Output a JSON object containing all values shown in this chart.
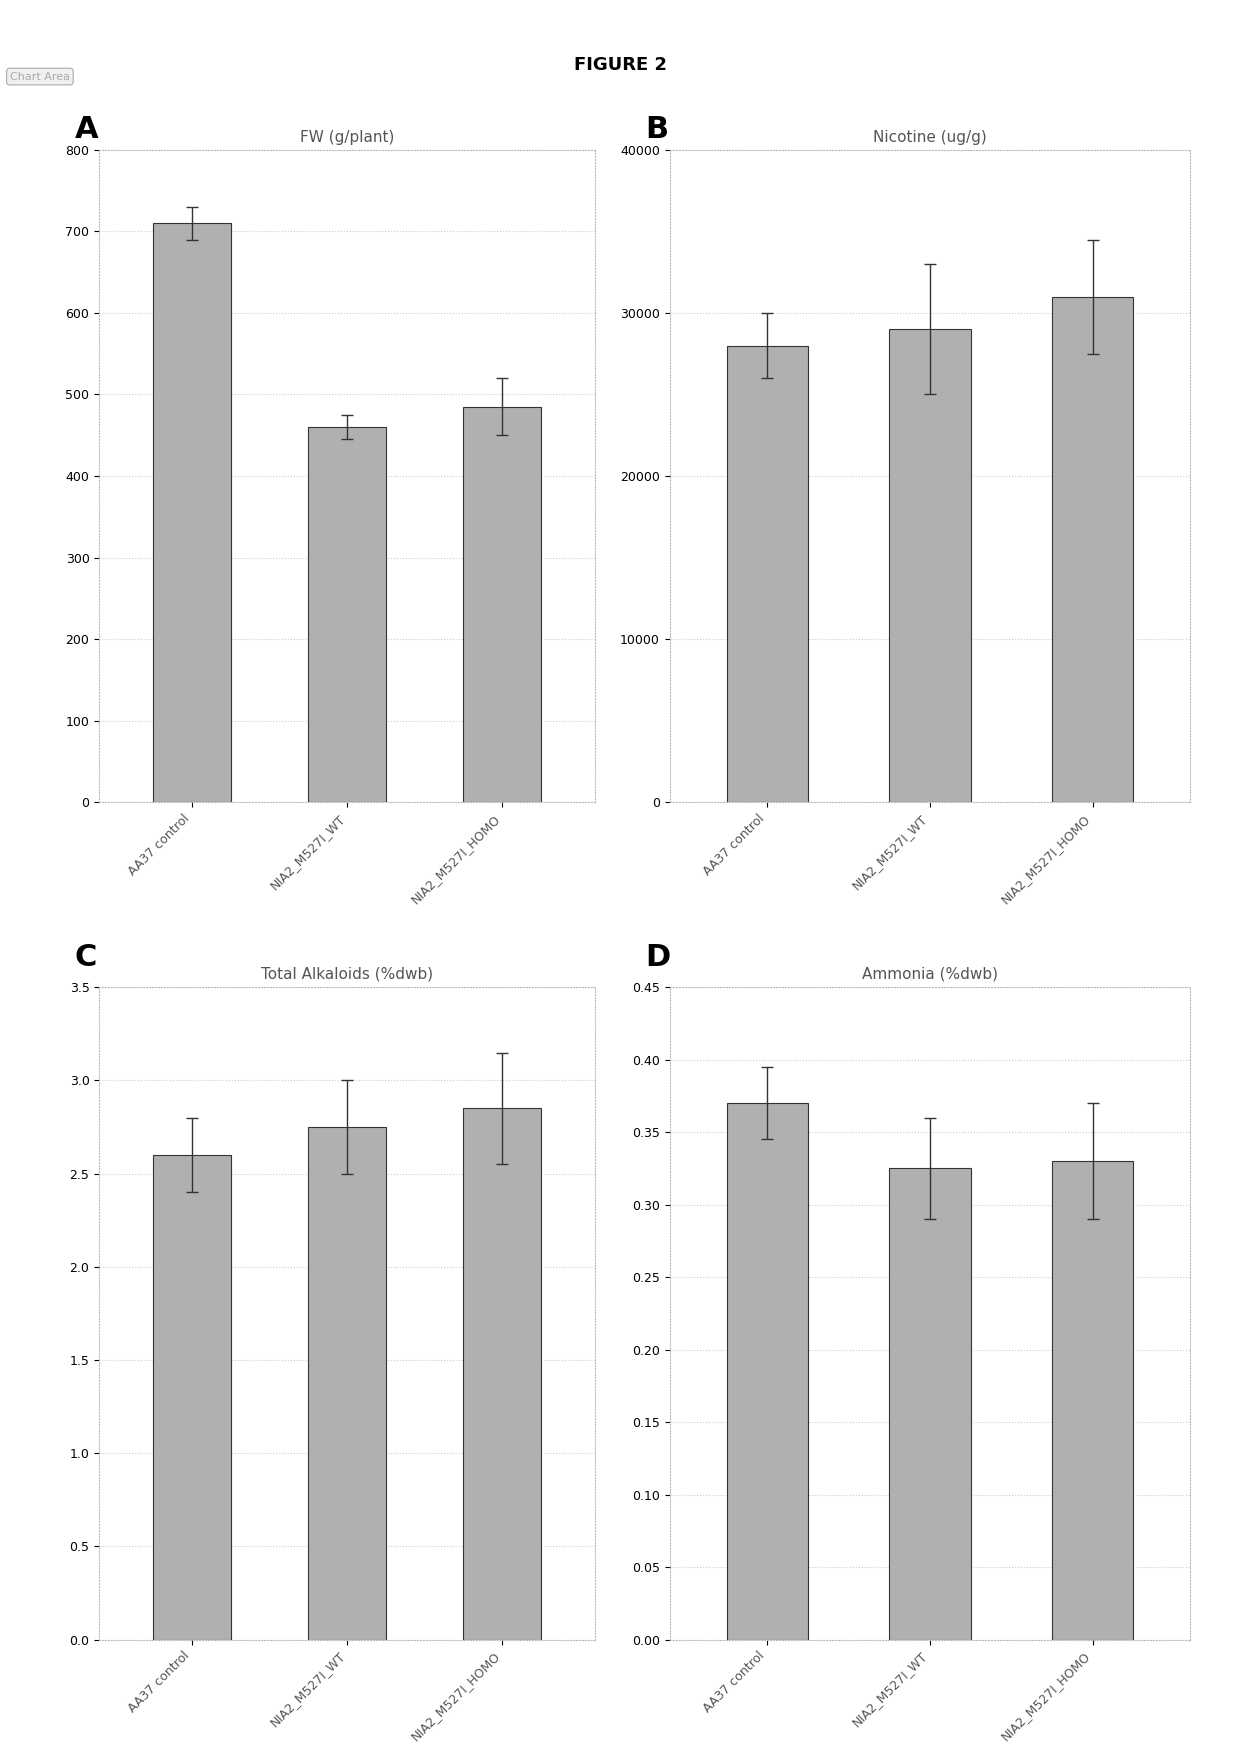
{
  "title": "FIGURE 2",
  "categories": [
    "AA37 control",
    "NIA2_M527I_WT",
    "NIA2_M527I_HOMO"
  ],
  "panels": [
    {
      "label": "A",
      "chart_title": "FW (g/plant)",
      "values": [
        710,
        460,
        485
      ],
      "errors": [
        20,
        15,
        35
      ],
      "ylim": [
        0,
        800
      ],
      "yticks": [
        0,
        100,
        200,
        300,
        400,
        500,
        600,
        700,
        800
      ],
      "has_chart_area_box": true
    },
    {
      "label": "B",
      "chart_title": "Nicotine (ug/g)",
      "values": [
        28000,
        29000,
        31000
      ],
      "errors": [
        2000,
        4000,
        3500
      ],
      "ylim": [
        0,
        40000
      ],
      "yticks": [
        0,
        10000,
        20000,
        30000,
        40000
      ],
      "has_chart_area_box": false
    },
    {
      "label": "C",
      "chart_title": "Total Alkaloids (%dwb)",
      "values": [
        2.6,
        2.75,
        2.85
      ],
      "errors": [
        0.2,
        0.25,
        0.3
      ],
      "ylim": [
        0,
        3.5
      ],
      "yticks": [
        0,
        0.5,
        1.0,
        1.5,
        2.0,
        2.5,
        3.0,
        3.5
      ],
      "has_chart_area_box": false
    },
    {
      "label": "D",
      "chart_title": "Ammonia (%dwb)",
      "values": [
        0.37,
        0.325,
        0.33
      ],
      "errors": [
        0.025,
        0.035,
        0.04
      ],
      "ylim": [
        0,
        0.45
      ],
      "yticks": [
        0,
        0.05,
        0.1,
        0.15,
        0.2,
        0.25,
        0.3,
        0.35,
        0.4,
        0.45
      ],
      "has_chart_area_box": false
    }
  ],
  "bar_color": "#b0b0b0",
  "bar_edge_color": "#333333",
  "bar_width": 0.5,
  "grid_color": "#cccccc",
  "grid_linestyle": ":",
  "figure_bg": "#ffffff",
  "panel_bg": "#ffffff",
  "box_border_color": "#aaaaaa",
  "title_fontsize": 13,
  "panel_label_fontsize": 22,
  "chart_title_fontsize": 11,
  "tick_fontsize": 9,
  "xticklabel_fontsize": 9
}
